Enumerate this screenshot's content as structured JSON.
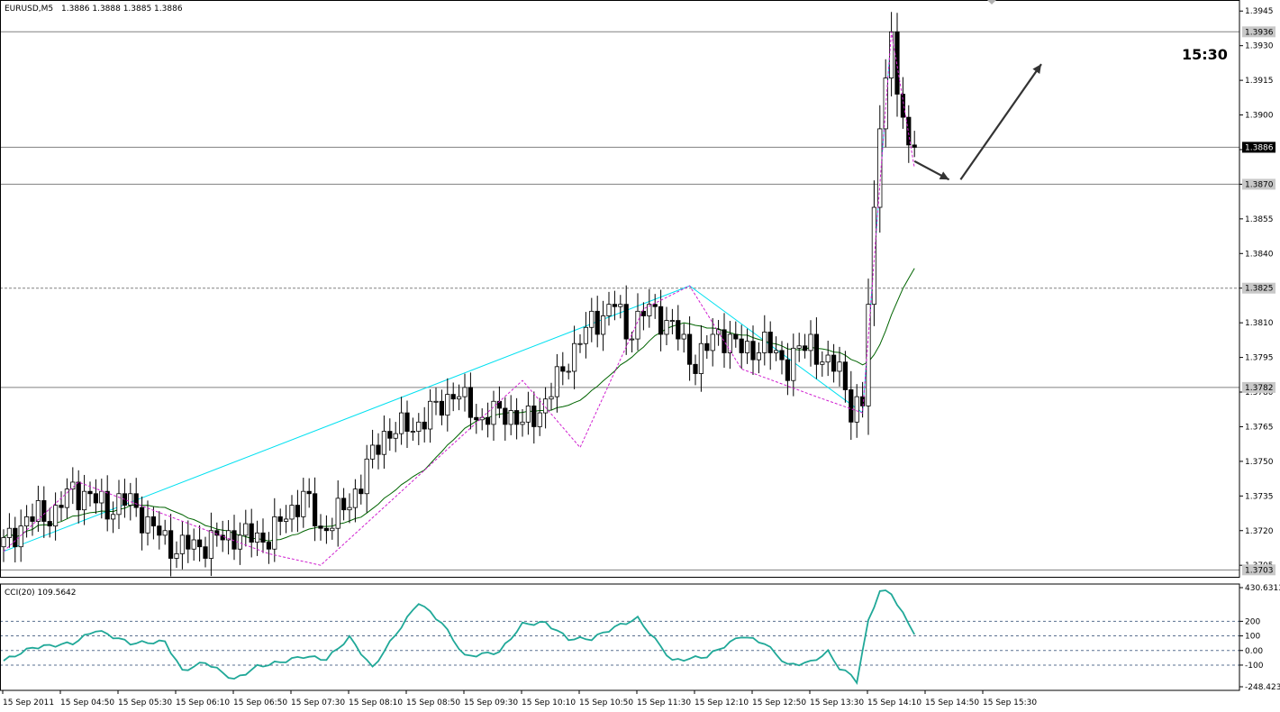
{
  "header": {
    "symbol_label": "EURUSD,M5",
    "ohlc_label": "1.3886 1.3888 1.3885 1.3886"
  },
  "annotation": {
    "time_label": "15:30"
  },
  "colors": {
    "background": "#ffffff",
    "candle_border": "#000000",
    "bear_fill": "#000000",
    "bull_fill": "#ffffff",
    "ma": "#006400",
    "zigzag": "#d020d0",
    "trendline": "#00e0f0",
    "cci": "#20a898",
    "level_line": "#808080",
    "arrow": "#333333"
  },
  "chart_data": [
    {
      "type": "candlestick",
      "timeframe": "M5",
      "ylim": [
        1.37,
        1.3949
      ],
      "y_ticks": [
        "1.3945",
        "1.3930",
        "1.3915",
        "1.3900",
        "1.3885",
        "1.3870",
        "1.3855",
        "1.3840",
        "1.3825",
        "1.3810",
        "1.3795",
        "1.3780",
        "1.3765",
        "1.3750",
        "1.3735",
        "1.3720",
        "1.3705"
      ],
      "highlighted_levels": [
        {
          "label": "1.3936",
          "value": 1.3936,
          "style": "solid",
          "dark": false
        },
        {
          "label": "1.3886",
          "value": 1.3886,
          "style": "solid",
          "dark": true
        },
        {
          "label": "1.3870",
          "value": 1.387,
          "style": "solid",
          "dark": false
        },
        {
          "label": "1.3825",
          "value": 1.3825,
          "style": "dashed",
          "dark": false
        },
        {
          "label": "1.3782",
          "value": 1.3782,
          "style": "solid",
          "dark": false
        },
        {
          "label": "1.3703",
          "value": 1.3703,
          "style": "solid",
          "dark": false
        }
      ],
      "x_labels": [
        "15 Sep 2011",
        "15 Sep 04:50",
        "15 Sep 05:30",
        "15 Sep 06:10",
        "15 Sep 06:50",
        "15 Sep 07:30",
        "15 Sep 08:10",
        "15 Sep 08:50",
        "15 Sep 09:30",
        "15 Sep 10:10",
        "15 Sep 10:50",
        "15 Sep 11:30",
        "15 Sep 12:10",
        "15 Sep 12:50",
        "15 Sep 13:30",
        "15 Sep 14:10",
        "15 Sep 14:50",
        "15 Sep 15:30"
      ],
      "close_waypoints": [
        [
          0,
          1.3714
        ],
        [
          4,
          1.3725
        ],
        [
          9,
          1.3728
        ],
        [
          12,
          1.3738
        ],
        [
          18,
          1.373
        ],
        [
          22,
          1.3733
        ],
        [
          26,
          1.372
        ],
        [
          30,
          1.3712
        ],
        [
          34,
          1.3714
        ],
        [
          40,
          1.3718
        ],
        [
          46,
          1.3717
        ],
        [
          52,
          1.3735
        ],
        [
          55,
          1.372
        ],
        [
          60,
          1.3732
        ],
        [
          66,
          1.3762
        ],
        [
          72,
          1.3766
        ],
        [
          78,
          1.378
        ],
        [
          83,
          1.3768
        ],
        [
          87,
          1.3772
        ],
        [
          90,
          1.3766
        ],
        [
          94,
          1.3775
        ],
        [
          98,
          1.3795
        ],
        [
          102,
          1.381
        ],
        [
          106,
          1.3818
        ],
        [
          108,
          1.3806
        ],
        [
          112,
          1.3816
        ],
        [
          116,
          1.3808
        ],
        [
          120,
          1.3792
        ],
        [
          124,
          1.3806
        ],
        [
          128,
          1.3798
        ],
        [
          132,
          1.38
        ],
        [
          136,
          1.3792
        ],
        [
          140,
          1.3802
        ],
        [
          143,
          1.379
        ],
        [
          145,
          1.3792
        ],
        [
          147,
          1.3772
        ],
        [
          149,
          1.3772
        ],
        [
          150,
          1.382
        ],
        [
          151,
          1.3858
        ],
        [
          152,
          1.39
        ],
        [
          153,
          1.3915
        ],
        [
          154,
          1.393
        ],
        [
          155,
          1.3912
        ],
        [
          156,
          1.3898
        ],
        [
          157,
          1.3889
        ],
        [
          158,
          1.3886
        ]
      ],
      "candle_count": 159,
      "moving_average": {
        "type": "SMA",
        "period": 20
      },
      "zigzag_swing_points": [
        [
          0,
          1.3711
        ],
        [
          13,
          1.3741
        ],
        [
          46,
          1.371
        ],
        [
          55,
          1.3705
        ],
        [
          90,
          1.3785
        ],
        [
          100,
          1.3756
        ],
        [
          111,
          1.3816
        ],
        [
          119,
          1.3826
        ],
        [
          128,
          1.379
        ],
        [
          141,
          1.3778
        ],
        [
          149,
          1.3771
        ],
        [
          154,
          1.3936
        ],
        [
          158,
          1.3877
        ]
      ],
      "trendlines": [
        {
          "from": [
            0,
            1.3711
          ],
          "to": [
            119,
            1.3826
          ]
        },
        {
          "from": [
            119,
            1.3826
          ],
          "to": [
            149,
            1.3771
          ]
        },
        {
          "from": [
            149,
            1.3771
          ],
          "to": [
            154,
            1.3936
          ]
        }
      ],
      "arrows": [
        {
          "from": [
            158,
            1.388
          ],
          "to": [
            164,
            1.3872
          ]
        },
        {
          "from": [
            166,
            1.3872
          ],
          "to": [
            180,
            1.3922
          ]
        }
      ]
    },
    {
      "type": "line",
      "indicator_label": "CCI(20) 109.5642",
      "ylim": [
        -248.423,
        430.6313
      ],
      "y_ticks": [
        "430.6313",
        "200",
        "100",
        "0.00",
        "-100",
        "-248.423"
      ],
      "levels": [
        200,
        100,
        0,
        -100
      ],
      "series": [
        {
          "values_waypoints": [
            [
              0,
              -70
            ],
            [
              5,
              20
            ],
            [
              12,
              50
            ],
            [
              16,
              140
            ],
            [
              22,
              50
            ],
            [
              28,
              60
            ],
            [
              31,
              -140
            ],
            [
              35,
              -80
            ],
            [
              40,
              -200
            ],
            [
              44,
              -110
            ],
            [
              48,
              -80
            ],
            [
              52,
              -40
            ],
            [
              56,
              -60
            ],
            [
              60,
              90
            ],
            [
              64,
              -120
            ],
            [
              68,
              110
            ],
            [
              72,
              330
            ],
            [
              76,
              190
            ],
            [
              80,
              -40
            ],
            [
              86,
              -10
            ],
            [
              90,
              180
            ],
            [
              94,
              190
            ],
            [
              98,
              80
            ],
            [
              102,
              80
            ],
            [
              106,
              160
            ],
            [
              110,
              220
            ],
            [
              116,
              -70
            ],
            [
              122,
              -40
            ],
            [
              128,
              100
            ],
            [
              132,
              50
            ],
            [
              136,
              -100
            ],
            [
              140,
              -80
            ],
            [
              143,
              -10
            ],
            [
              145,
              -120
            ],
            [
              147,
              -170
            ],
            [
              148,
              -210
            ],
            [
              150,
              200
            ],
            [
              152,
              410
            ],
            [
              154,
              390
            ],
            [
              156,
              250
            ],
            [
              158,
              110
            ]
          ]
        }
      ]
    }
  ]
}
